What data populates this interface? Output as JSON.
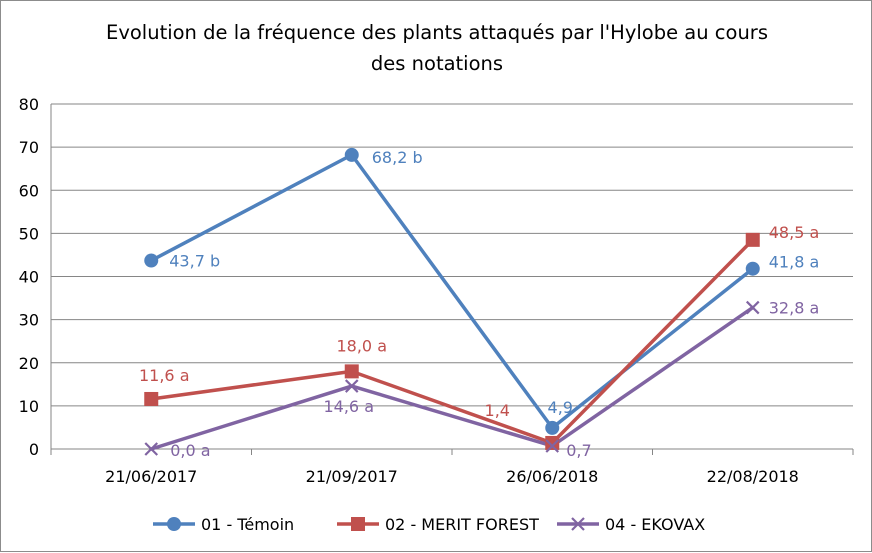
{
  "chart_data": {
    "type": "line",
    "title_line1": "Evolution de la fréquence des plants attaqués par l'Hylobe au cours",
    "title_line2": "des notations",
    "categories": [
      "21/06/2017",
      "21/09/2017",
      "26/06/2018",
      "22/08/2018"
    ],
    "ylim": [
      0,
      80
    ],
    "yticks": [
      0,
      10,
      20,
      30,
      40,
      50,
      60,
      70,
      80
    ],
    "grid": true,
    "legend_position": "bottom",
    "series": [
      {
        "name": "01 - Témoin",
        "color": "#4f81bd",
        "marker": "circle",
        "values": [
          43.7,
          68.2,
          4.9,
          41.8
        ],
        "labels": [
          "43,7 b",
          "68,2 b",
          "4,9",
          "41,8 a"
        ]
      },
      {
        "name": "02 - MERIT FOREST",
        "color": "#c0504d",
        "marker": "square",
        "values": [
          11.6,
          18.0,
          1.4,
          48.5
        ],
        "labels": [
          "11,6 a",
          "18,0 a",
          "1,4",
          "48,5 a"
        ]
      },
      {
        "name": "04 - EKOVAX",
        "color": "#8064a2",
        "marker": "x",
        "values": [
          0.0,
          14.6,
          0.7,
          32.8
        ],
        "labels": [
          "0,0 a",
          "14,6 a",
          "0,7",
          "32,8 a"
        ]
      }
    ]
  }
}
